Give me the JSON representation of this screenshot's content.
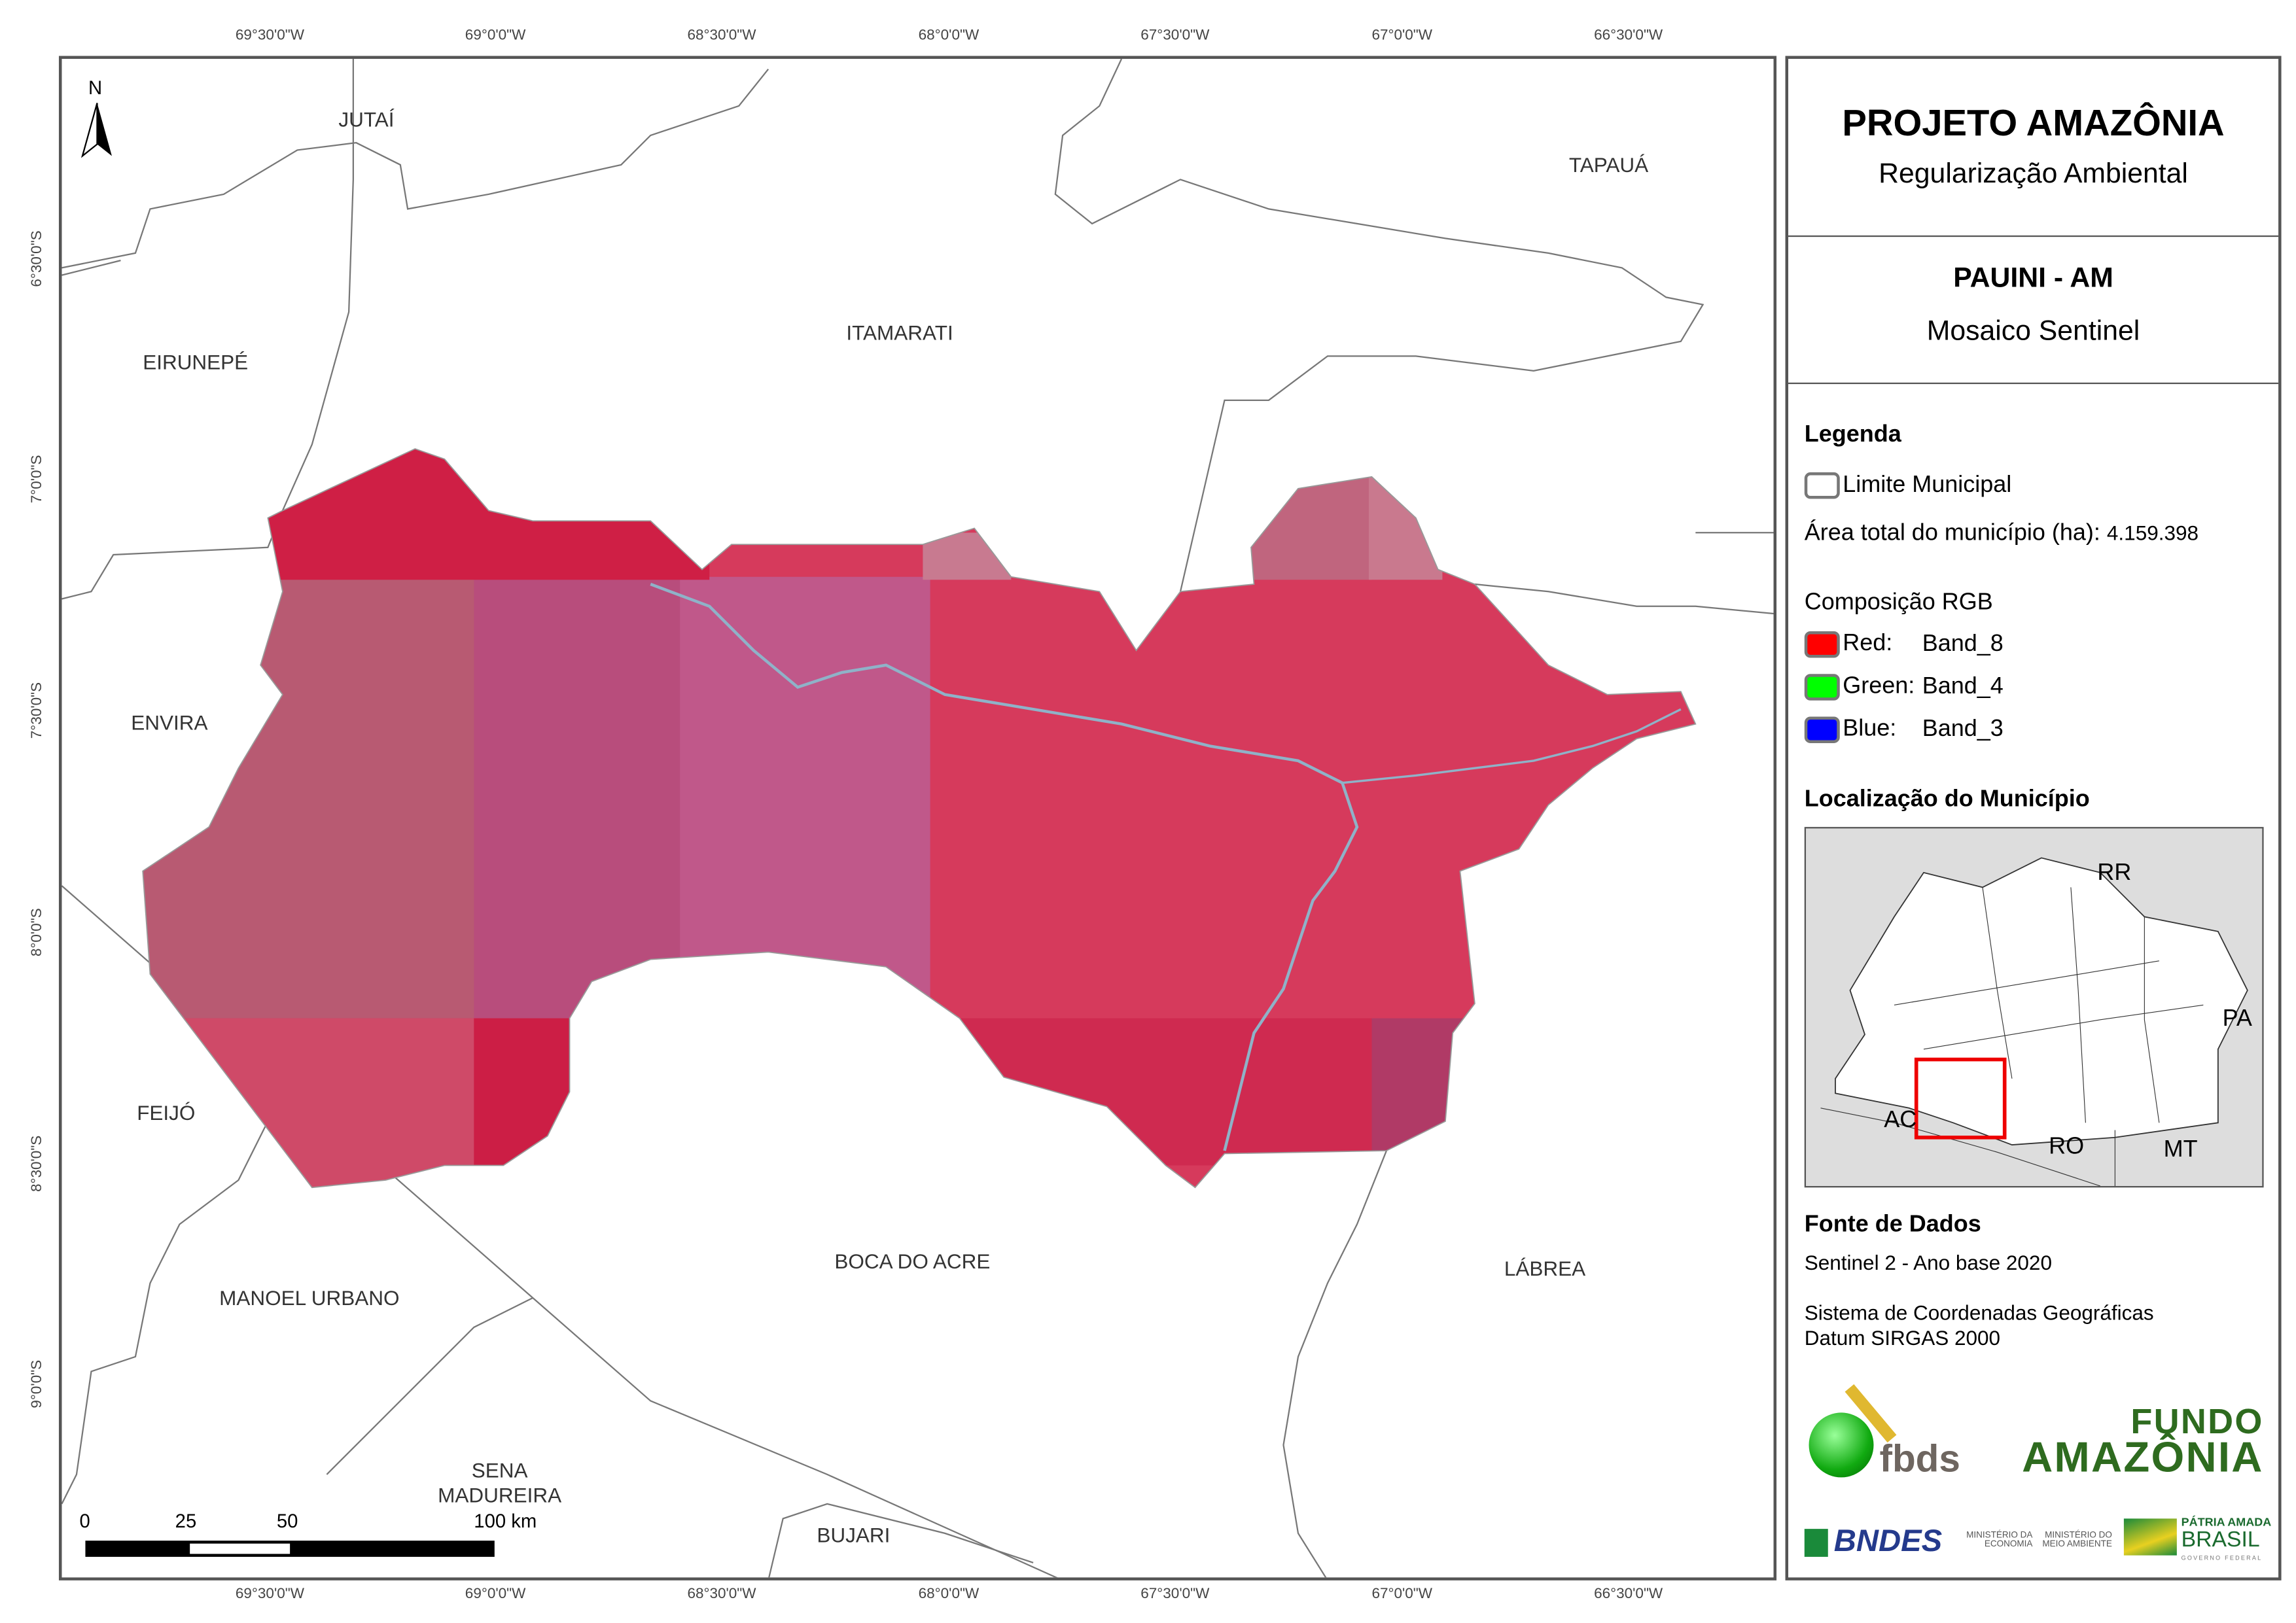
{
  "graticule": {
    "longitudes": [
      "69°30'0\"W",
      "69°0'0\"W",
      "68°30'0\"W",
      "68°0'0\"W",
      "67°30'0\"W",
      "67°0'0\"W",
      "66°30'0\"W"
    ],
    "latitudes": [
      "6°30'0\"S",
      "7°0'0\"S",
      "7°30'0\"S",
      "8°0'0\"S",
      "8°30'0\"S",
      "9°0'0\"S"
    ]
  },
  "north_arrow": "N",
  "municipalities": [
    "JUTAÍ",
    "TAPAUÁ",
    "EIRUNEPÉ",
    "ITAMARATI",
    "ENVIRA",
    "FEIJÓ",
    "MANOEL URBANO",
    "BOCA DO ACRE",
    "LÁBREA",
    "SENA MADUREIRA",
    "BUJARI"
  ],
  "scale_bar": {
    "ticks": [
      "0",
      "25",
      "50",
      "100 km"
    ]
  },
  "panel": {
    "title": "PROJETO AMAZÔNIA",
    "subtitle": "Regularização Ambiental",
    "municipality": "PAUINI - AM",
    "map_type": "Mosaico Sentinel",
    "legend_title": "Legenda",
    "limit_label": "Limite Municipal",
    "area_label": "Área total do município (ha):",
    "area_value": "4.159.398",
    "rgb_title": "Composição RGB",
    "bands": [
      {
        "channel": "Red:",
        "band": "Band_8",
        "color": "#ff0000"
      },
      {
        "channel": "Green:",
        "band": "Band_4",
        "color": "#00ff00"
      },
      {
        "channel": "Blue:",
        "band": "Band_3",
        "color": "#0000ff"
      }
    ],
    "location_title": "Localização do Município",
    "inset_labels": [
      "RR",
      "PA",
      "AC",
      "RO",
      "MT"
    ],
    "sources_title": "Fonte de Dados",
    "source_1": "Sentinel 2 - Ano base 2020",
    "crs_1": "Sistema de Coordenadas Geográficas",
    "crs_2": "Datum SIRGAS 2000",
    "logos": {
      "fbds": "fbds",
      "fundo_1": "FUNDO",
      "fundo_2": "AMAZÔNIA",
      "bndes": "BNDES",
      "min_economia": "MINISTÉRIO DA ECONOMIA",
      "min_ambiente": "MINISTÉRIO DO MEIO AMBIENTE",
      "patria_1": "PÁTRIA AMADA",
      "patria_2": "BRASIL",
      "patria_3": "GOVERNO FEDERAL"
    }
  }
}
